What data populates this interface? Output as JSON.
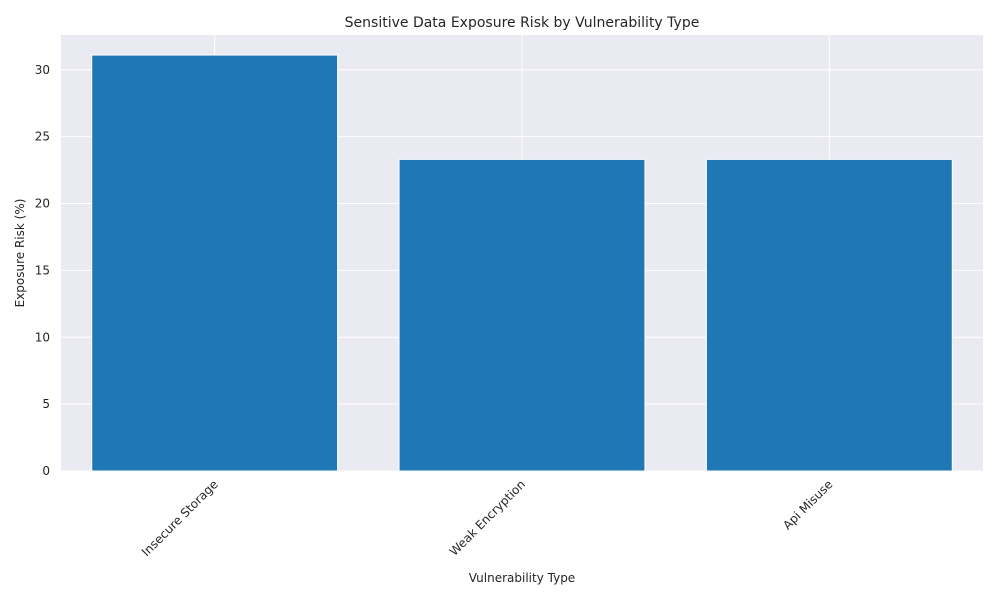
{
  "chart_data": {
    "type": "bar",
    "title": "Sensitive Data Exposure Risk by Vulnerability Type",
    "xlabel": "Vulnerability Type",
    "ylabel": "Exposure Risk (%)",
    "categories": [
      "Insecure Storage",
      "Weak Encryption",
      "Api Misuse"
    ],
    "values": [
      31.1,
      23.3,
      23.3
    ],
    "ylim": [
      0,
      32.6
    ],
    "yticks": [
      0,
      5,
      10,
      15,
      20,
      25,
      30
    ],
    "grid": true,
    "bar_color": "#1f77b4",
    "background_color": "#eaeaf2",
    "grid_color": "#ffffff"
  }
}
